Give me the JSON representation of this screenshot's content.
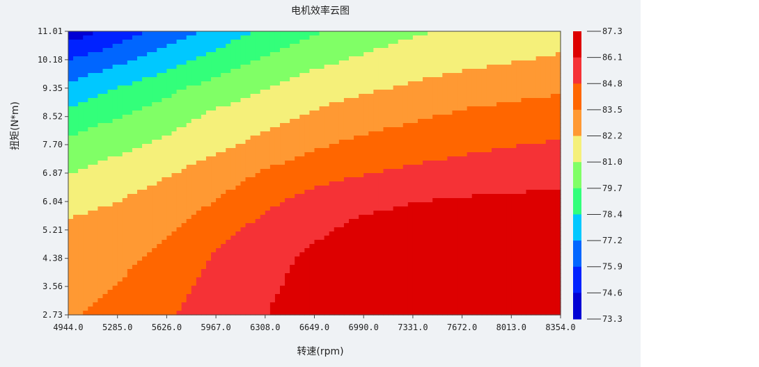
{
  "chart_data": {
    "type": "heatmap",
    "title": "电机效率云图",
    "xlabel": "转速(rpm)",
    "ylabel": "扭矩(N*m)",
    "x_ticks": [
      "4944.0",
      "5285.0",
      "5626.0",
      "5967.0",
      "6308.0",
      "6649.0",
      "6990.0",
      "7331.0",
      "7672.0",
      "8013.0",
      "8354.0"
    ],
    "y_ticks": [
      "2.73",
      "3.56",
      "4.38",
      "5.21",
      "6.04",
      "6.87",
      "7.70",
      "8.52",
      "9.35",
      "10.18",
      "11.01"
    ],
    "xlim": [
      4944.0,
      8354.0
    ],
    "ylim": [
      2.73,
      11.01
    ],
    "colorbar": {
      "labels": [
        "87.3",
        "86.1",
        "84.8",
        "83.5",
        "82.2",
        "81.0",
        "79.7",
        "78.4",
        "77.2",
        "75.9",
        "74.6",
        "73.3"
      ],
      "min": 73.3,
      "max": 87.3,
      "colors": [
        "#0000d4",
        "#0022ff",
        "#0066ff",
        "#00c8ff",
        "#33ff7a",
        "#80ff66",
        "#f5f07a",
        "#ff9933",
        "#ff6600",
        "#f53236",
        "#dd0000"
      ]
    },
    "efficiency_grid": {
      "x": [
        4944.0,
        5285.0,
        5626.0,
        5967.0,
        6308.0,
        6649.0,
        6990.0,
        7331.0,
        7672.0,
        8013.0,
        8354.0
      ],
      "y": [
        2.73,
        3.56,
        4.38,
        5.21,
        6.04,
        6.87,
        7.7,
        8.52,
        9.35,
        10.18,
        11.01
      ],
      "z": [
        [
          83.4,
          83.8,
          84.6,
          85.4,
          86.0,
          86.7,
          86.9,
          87.0,
          87.1,
          87.1,
          87.1
        ],
        [
          83.1,
          83.5,
          84.2,
          85.2,
          85.8,
          86.5,
          86.9,
          87.0,
          87.1,
          87.1,
          87.1
        ],
        [
          82.8,
          83.2,
          83.8,
          84.9,
          85.6,
          86.3,
          86.8,
          86.9,
          87.0,
          87.0,
          87.0
        ],
        [
          82.5,
          82.8,
          83.3,
          84.3,
          85.2,
          85.8,
          86.4,
          86.6,
          86.8,
          86.8,
          86.8
        ],
        [
          81.8,
          82.2,
          82.8,
          83.5,
          84.5,
          85.2,
          85.7,
          86.0,
          86.2,
          86.3,
          86.4
        ],
        [
          80.9,
          81.5,
          82.1,
          82.8,
          83.6,
          84.3,
          84.7,
          85.0,
          85.2,
          85.4,
          85.5
        ],
        [
          79.9,
          80.6,
          81.2,
          81.9,
          82.6,
          83.3,
          83.8,
          84.2,
          84.5,
          84.7,
          84.9
        ],
        [
          78.9,
          79.6,
          80.4,
          81.2,
          81.7,
          82.4,
          82.9,
          83.3,
          83.7,
          83.9,
          84.1
        ],
        [
          77.4,
          78.4,
          79.3,
          80.2,
          80.9,
          81.6,
          82.0,
          82.4,
          82.8,
          83.1,
          83.3
        ],
        [
          75.8,
          76.8,
          77.8,
          78.9,
          79.8,
          80.6,
          81.1,
          81.5,
          81.8,
          82.1,
          82.4
        ],
        [
          73.8,
          75.0,
          76.4,
          77.5,
          78.7,
          79.5,
          80.3,
          80.8,
          81.1,
          81.3,
          81.5
        ]
      ]
    },
    "grid": false,
    "legend": "right colorbar"
  }
}
